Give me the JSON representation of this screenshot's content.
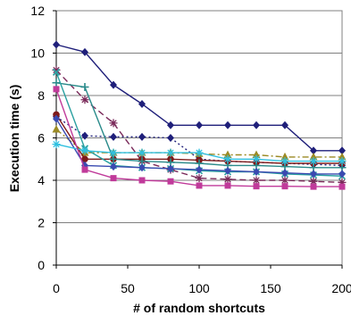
{
  "chart_data": {
    "type": "line",
    "title": "",
    "xlabel": "# of random shortcuts",
    "ylabel": "Execution time (s)",
    "xlim": [
      0,
      200
    ],
    "ylim": [
      0,
      12
    ],
    "xticks": [
      "0",
      "50",
      "100",
      "150",
      "200"
    ],
    "yticks": [
      "0",
      "2",
      "4",
      "6",
      "8",
      "10",
      "12"
    ],
    "grid": "horizontal",
    "legend": "none",
    "series": [
      {
        "color": "#1f1f7a",
        "marker": "diamond",
        "dash": "solid",
        "x": [
          0,
          20,
          40,
          60,
          80,
          100,
          120,
          140,
          160,
          180,
          200
        ],
        "y": [
          10.4,
          10.05,
          8.5,
          7.6,
          6.6,
          6.6,
          6.6,
          6.6,
          6.6,
          5.4,
          5.4
        ]
      },
      {
        "color": "#1f1f7a",
        "marker": "diamond",
        "dash": "dotted",
        "x": [
          0,
          20,
          40,
          60,
          80,
          100,
          120,
          140,
          160,
          180,
          200
        ],
        "y": [
          7.0,
          6.1,
          6.05,
          6.05,
          6.0,
          5.0,
          4.9,
          4.85,
          4.8,
          4.75,
          4.7
        ]
      },
      {
        "color": "#9b8a24",
        "marker": "triangle",
        "dash": "dashdot",
        "x": [
          0,
          20,
          40,
          60,
          80,
          100,
          120,
          140,
          160,
          180,
          200
        ],
        "y": [
          6.4,
          5.3,
          5.3,
          5.3,
          5.3,
          5.25,
          5.2,
          5.2,
          5.1,
          5.1,
          5.1
        ]
      },
      {
        "color": "#7a2a5a",
        "marker": "star",
        "dash": "dashed",
        "x": [
          0,
          20,
          40,
          60,
          80,
          100,
          120,
          140,
          160,
          180,
          200
        ],
        "y": [
          9.2,
          7.8,
          6.7,
          4.9,
          4.5,
          4.1,
          4.05,
          4.0,
          4.0,
          3.95,
          3.9
        ]
      },
      {
        "color": "#7e1a1a",
        "marker": "circle",
        "dash": "solid",
        "x": [
          0,
          20,
          40,
          60,
          80,
          100,
          120,
          140,
          160,
          180,
          200
        ],
        "y": [
          7.1,
          5.0,
          5.0,
          5.0,
          5.0,
          4.95,
          4.9,
          4.85,
          4.8,
          4.8,
          4.8
        ]
      },
      {
        "color": "#2a8a8a",
        "marker": "plus",
        "dash": "solid",
        "x": [
          0,
          20,
          40,
          60,
          80,
          100,
          120,
          140,
          160,
          180,
          200
        ],
        "y": [
          8.6,
          8.4,
          5.0,
          4.9,
          4.85,
          4.8,
          4.7,
          4.7,
          4.65,
          4.6,
          4.6
        ]
      },
      {
        "color": "#2aa0a0",
        "marker": "x",
        "dash": "solid",
        "x": [
          0,
          20,
          40,
          60,
          80,
          100,
          120,
          140,
          160,
          180,
          200
        ],
        "y": [
          9.1,
          5.5,
          4.7,
          4.6,
          4.55,
          4.45,
          4.4,
          4.4,
          4.3,
          4.25,
          4.2
        ]
      },
      {
        "color": "#3a4ab0",
        "marker": "diamond",
        "dash": "solid",
        "x": [
          0,
          20,
          40,
          60,
          80,
          100,
          120,
          140,
          160,
          180,
          200
        ],
        "y": [
          6.9,
          4.7,
          4.65,
          4.6,
          4.55,
          4.5,
          4.45,
          4.4,
          4.35,
          4.3,
          4.3
        ]
      },
      {
        "color": "#30c0e0",
        "marker": "star",
        "dash": "solid",
        "x": [
          0,
          20,
          40,
          60,
          80,
          100,
          120,
          140,
          160,
          180,
          200
        ],
        "y": [
          5.7,
          5.4,
          5.3,
          5.3,
          5.3,
          5.3,
          5.0,
          5.0,
          4.9,
          4.9,
          4.9
        ]
      },
      {
        "color": "#c03a9a",
        "marker": "square",
        "dash": "solid",
        "x": [
          0,
          20,
          40,
          60,
          80,
          100,
          120,
          140,
          160,
          180,
          200
        ],
        "y": [
          8.3,
          4.5,
          4.1,
          4.0,
          3.95,
          3.75,
          3.75,
          3.72,
          3.72,
          3.7,
          3.7
        ]
      }
    ]
  }
}
